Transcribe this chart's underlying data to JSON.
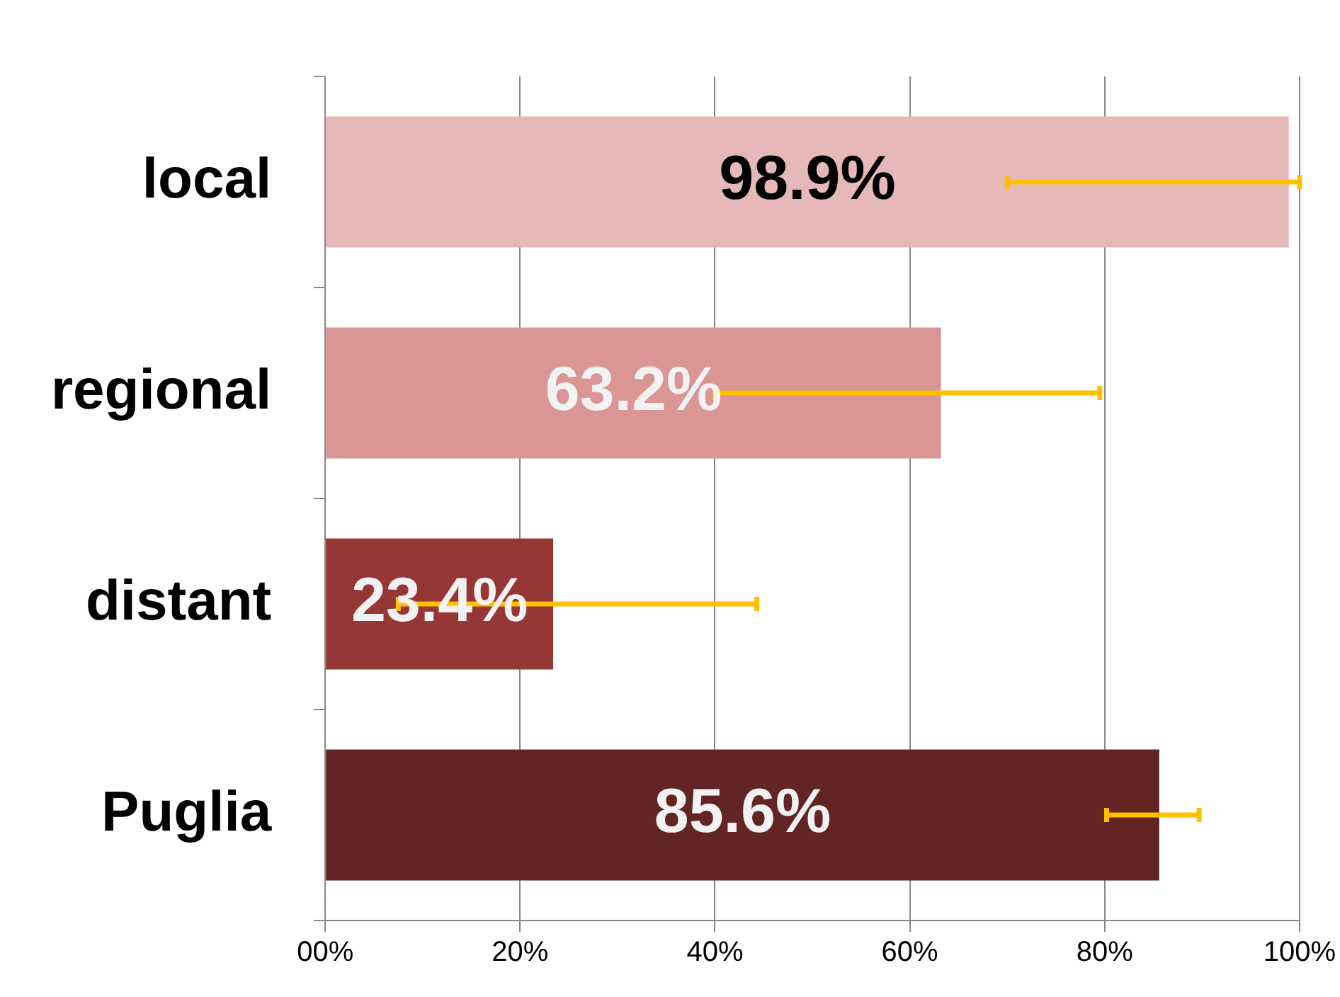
{
  "chart_data": {
    "type": "bar",
    "orientation": "horizontal",
    "categories": [
      "local",
      "regional",
      "distant",
      "Puglia"
    ],
    "values": [
      98.9,
      63.2,
      23.4,
      85.6
    ],
    "colors": [
      "#e6b8b7",
      "#d99694",
      "#953735",
      "#632523"
    ],
    "value_labels": [
      "98.9%",
      "63.2%",
      "23.4%",
      "85.6%"
    ],
    "errors": [
      [
        70,
        100
      ],
      [
        40,
        79.5
      ],
      [
        7.5,
        44.3
      ],
      [
        80.2,
        89.7
      ]
    ],
    "xlim": [
      0,
      100
    ],
    "xticks": [
      {
        "value": 0,
        "label": "00%"
      },
      {
        "value": 20,
        "label": "20%"
      },
      {
        "value": 40,
        "label": "40%"
      },
      {
        "value": 60,
        "label": "60%"
      },
      {
        "value": 80,
        "label": "80%"
      },
      {
        "value": 100,
        "label": "100%"
      }
    ],
    "grid": "x",
    "legend": false
  }
}
